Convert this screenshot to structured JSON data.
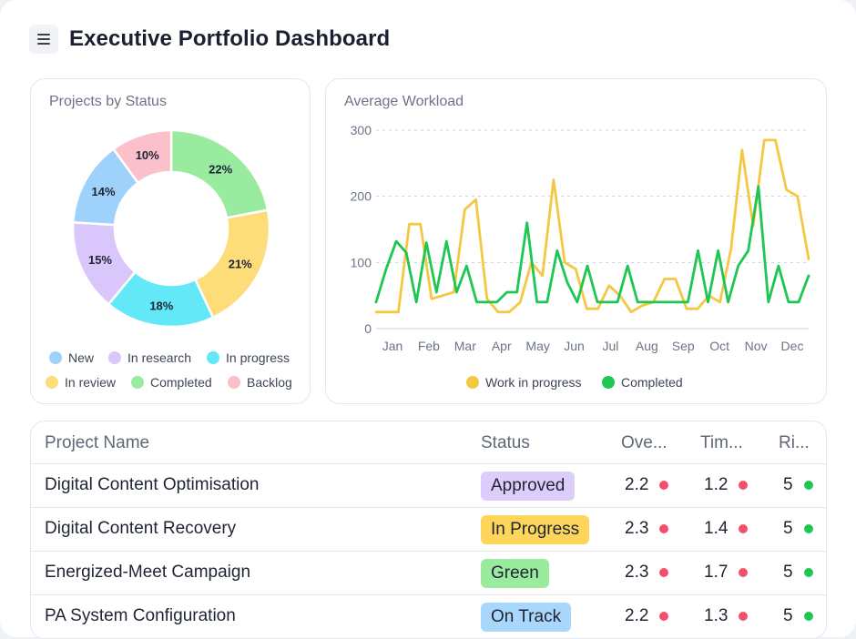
{
  "header": {
    "title": "Executive Portfolio Dashboard",
    "menu_icon": "hamburger-menu-icon"
  },
  "donut_card": {
    "title": "Projects by Status",
    "legend": [
      {
        "label": "New",
        "color": "#9fd2fb"
      },
      {
        "label": "In research",
        "color": "#d9c6fb"
      },
      {
        "label": "In progress",
        "color": "#63e8f7"
      },
      {
        "label": "In review",
        "color": "#fddc7a"
      },
      {
        "label": "Completed",
        "color": "#99eb9f"
      },
      {
        "label": "Backlog",
        "color": "#fbc0c9"
      }
    ]
  },
  "line_card": {
    "title": "Average Workload",
    "legend": [
      {
        "label": "Work in progress",
        "color": "#f4c842"
      },
      {
        "label": "Completed",
        "color": "#1ec653"
      }
    ]
  },
  "table": {
    "columns": [
      "Project Name",
      "Status",
      "Ove...",
      "Tim...",
      "Ri..."
    ],
    "rows": [
      {
        "name": "Digital Content Optimisation",
        "status": "Approved",
        "status_color": "#dccdfb",
        "overall": "2.2",
        "overall_color": "#f0506e",
        "time": "1.2",
        "time_color": "#f0506e",
        "risk": "5",
        "risk_color": "#1ec653"
      },
      {
        "name": "Digital Content Recovery",
        "status": "In Progress",
        "status_color": "#fdd55a",
        "overall": "2.3",
        "overall_color": "#f0506e",
        "time": "1.4",
        "time_color": "#f0506e",
        "risk": "5",
        "risk_color": "#1ec653"
      },
      {
        "name": "Energized-Meet Campaign",
        "status": "Green",
        "status_color": "#9beb9f",
        "overall": "2.3",
        "overall_color": "#f0506e",
        "time": "1.7",
        "time_color": "#f0506e",
        "risk": "5",
        "risk_color": "#1ec653"
      },
      {
        "name": "PA System Configuration",
        "status": "On Track",
        "status_color": "#a9d7fb",
        "overall": "2.2",
        "overall_color": "#f0506e",
        "time": "1.3",
        "time_color": "#f0506e",
        "risk": "5",
        "risk_color": "#1ec653"
      }
    ]
  },
  "chart_data": [
    {
      "type": "pie",
      "title": "Projects by Status",
      "categories": [
        "Completed",
        "In review",
        "In progress",
        "In research",
        "New",
        "Backlog"
      ],
      "values": [
        22,
        21,
        18,
        15,
        14,
        10
      ],
      "value_labels": [
        "22%",
        "21%",
        "18%",
        "15%",
        "14%",
        "10%"
      ],
      "colors": [
        "#99eb9f",
        "#fddc7a",
        "#63e8f7",
        "#d9c6fb",
        "#9fd2fb",
        "#fbc0c9"
      ],
      "donut": true,
      "legend": "bottom"
    },
    {
      "type": "line",
      "title": "Average Workload",
      "xlabel": "",
      "ylabel": "",
      "x_ticks": [
        "Jan",
        "Feb",
        "Mar",
        "Apr",
        "May",
        "Jun",
        "Jul",
        "Aug",
        "Sep",
        "Oct",
        "Nov",
        "Dec"
      ],
      "y_ticks": [
        0,
        100,
        200,
        300
      ],
      "ylim": [
        0,
        300
      ],
      "grid": "horizontal-dotted",
      "legend": "bottom",
      "series": [
        {
          "name": "Work in progress",
          "color": "#f4c842",
          "values": [
            25,
            25,
            25,
            158,
            158,
            45,
            50,
            55,
            180,
            195,
            45,
            25,
            25,
            40,
            100,
            80,
            225,
            100,
            90,
            30,
            30,
            65,
            50,
            25,
            35,
            40,
            75,
            75,
            30,
            30,
            50,
            40,
            120,
            270,
            155,
            285,
            285,
            210,
            200,
            105
          ]
        },
        {
          "name": "Completed",
          "color": "#1ec653",
          "values": [
            40,
            90,
            132,
            115,
            40,
            130,
            55,
            132,
            55,
            95,
            40,
            40,
            40,
            55,
            55,
            160,
            40,
            40,
            118,
            70,
            40,
            95,
            40,
            40,
            40,
            95,
            40,
            40,
            40,
            40,
            40,
            40,
            118,
            40,
            118,
            40,
            95,
            118,
            215,
            40,
            95,
            40,
            40,
            80
          ]
        }
      ]
    }
  ]
}
